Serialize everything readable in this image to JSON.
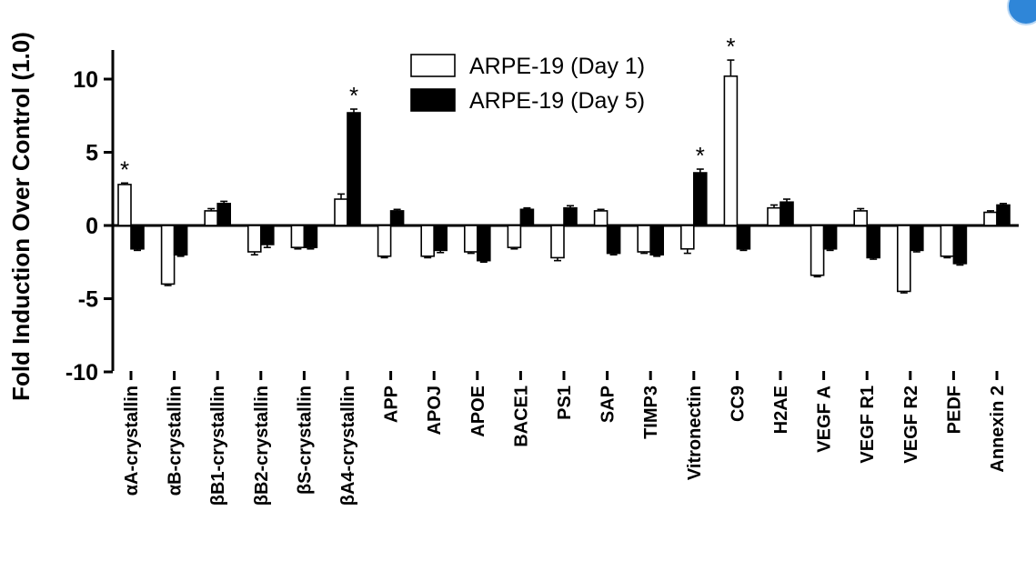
{
  "chart_data": {
    "type": "bar",
    "title": "",
    "xlabel": "",
    "ylabel": "Fold Induction Over Control (1.0)",
    "ylim": [
      -10,
      12
    ],
    "yticks": [
      10,
      5,
      0,
      -5,
      -10
    ],
    "categories": [
      "αA-crystallin",
      "αB-crystallin",
      "βB1-crystallin",
      "βB2-crystallin",
      "βS-crystallin",
      "βA4-crystallin",
      "APP",
      "APOJ",
      "APOE",
      "BACE1",
      "PS1",
      "SAP",
      "TIMP3",
      "Vitronectin",
      "CC9",
      "H2AE",
      "VEGF A",
      "VEGF R1",
      "VEGF R2",
      "PEDF",
      "Annexin 2"
    ],
    "series": [
      {
        "name": "ARPE-19 (Day 1)",
        "fill": "#ffffff",
        "values": [
          2.8,
          -4.0,
          1.0,
          -1.8,
          -1.5,
          1.8,
          -2.1,
          -2.1,
          -1.8,
          -1.5,
          -2.2,
          1.0,
          -1.8,
          -1.6,
          10.2,
          1.2,
          -3.4,
          1.0,
          -4.5,
          -2.1,
          0.9
        ],
        "errors": [
          0.1,
          0.1,
          0.15,
          0.2,
          0.1,
          0.35,
          0.1,
          0.1,
          0.1,
          0.1,
          0.2,
          0.1,
          0.1,
          0.3,
          1.1,
          0.2,
          0.1,
          0.15,
          0.1,
          0.1,
          0.1
        ]
      },
      {
        "name": "ARPE-19 (Day 5)",
        "fill": "#000000",
        "values": [
          -1.6,
          -2.0,
          1.5,
          -1.3,
          -1.5,
          7.7,
          1.0,
          -1.7,
          -2.4,
          1.1,
          1.2,
          -1.9,
          -2.0,
          3.6,
          -1.6,
          1.6,
          -1.6,
          -2.2,
          -1.7,
          -2.6,
          1.4
        ],
        "errors": [
          0.1,
          0.1,
          0.15,
          0.2,
          0.1,
          0.25,
          0.1,
          0.15,
          0.1,
          0.1,
          0.15,
          0.1,
          0.1,
          0.25,
          0.1,
          0.2,
          0.1,
          0.1,
          0.1,
          0.1,
          0.1
        ]
      }
    ],
    "annotations": [
      {
        "category_index": 0,
        "series_index": 0,
        "text": "*"
      },
      {
        "category_index": 5,
        "series_index": 1,
        "text": "*"
      },
      {
        "category_index": 13,
        "series_index": 1,
        "text": "*"
      },
      {
        "category_index": 14,
        "series_index": 0,
        "text": "*"
      }
    ],
    "legend": {
      "position": "top-center"
    },
    "grid": false
  }
}
